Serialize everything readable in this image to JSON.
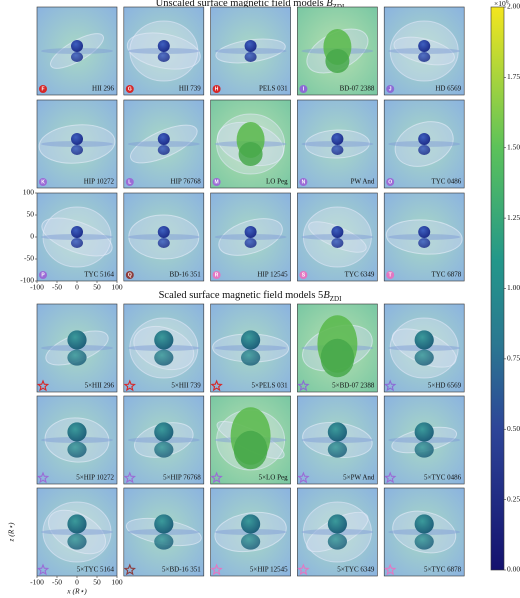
{
  "chart_data": {
    "type": "panel-grid",
    "sections": [
      {
        "title": "Unscaled surface magnetic field models ",
        "symbol": "B",
        "symbol_sub": "ZDI",
        "marker_shape": "circle",
        "panels": [
          {
            "label": "HII 296",
            "marker": "F",
            "color": "#d62728"
          },
          {
            "label": "HII 739",
            "marker": "G",
            "color": "#d62728"
          },
          {
            "label": "PELS 031",
            "marker": "H",
            "color": "#d62728"
          },
          {
            "label": "BD-07 2388",
            "marker": "I",
            "color": "#8c6bd6"
          },
          {
            "label": "HD 6569",
            "marker": "J",
            "color": "#8c6bd6"
          },
          {
            "label": "HIP 10272",
            "marker": "K",
            "color": "#9b6bd6"
          },
          {
            "label": "HIP 76768",
            "marker": "L",
            "color": "#9b6bd6"
          },
          {
            "label": "LO Peg",
            "marker": "M",
            "color": "#9b6bd6"
          },
          {
            "label": "PW And",
            "marker": "N",
            "color": "#9b6bd6"
          },
          {
            "label": "TYC 0486",
            "marker": "O",
            "color": "#9b6bd6"
          },
          {
            "label": "TYC 5164",
            "marker": "P",
            "color": "#9b6bd6"
          },
          {
            "label": "BD-16 351",
            "marker": "Q",
            "color": "#8c3b3b"
          },
          {
            "label": "HIP 12545",
            "marker": "R",
            "color": "#e377c2"
          },
          {
            "label": "TYC 6349",
            "marker": "S",
            "color": "#e377c2"
          },
          {
            "label": "TYC 6878",
            "marker": "T",
            "color": "#e377c2"
          }
        ]
      },
      {
        "title": "Scaled surface magnetic field models 5",
        "symbol": "B",
        "symbol_sub": "ZDI",
        "marker_shape": "star",
        "panels": [
          {
            "label": "5×HII 296",
            "color": "#d62728"
          },
          {
            "label": "5×HII 739",
            "color": "#d62728"
          },
          {
            "label": "5×PELS 031",
            "color": "#d62728"
          },
          {
            "label": "5×BD-07 2388",
            "color": "#8c6bd6"
          },
          {
            "label": "5×HD 6569",
            "color": "#8c6bd6"
          },
          {
            "label": "5×HIP 10272",
            "color": "#9b6bd6"
          },
          {
            "label": "5×HIP 76768",
            "color": "#9b6bd6"
          },
          {
            "label": "5×LO Peg",
            "color": "#9b6bd6"
          },
          {
            "label": "5×PW And",
            "color": "#9b6bd6"
          },
          {
            "label": "5×TYC 0486",
            "color": "#9b6bd6"
          },
          {
            "label": "5×TYC 5164",
            "color": "#9b6bd6"
          },
          {
            "label": "5×BD-16 351",
            "color": "#8c3b3b"
          },
          {
            "label": "5×HIP 12545",
            "color": "#e377c2"
          },
          {
            "label": "5×TYC 6349",
            "color": "#e377c2"
          },
          {
            "label": "5×TYC 6878",
            "color": "#e377c2"
          }
        ]
      }
    ],
    "xlim": [
      -100,
      100
    ],
    "ylim": [
      -100,
      100
    ],
    "xticks": [
      -100,
      -50,
      0,
      50,
      100
    ],
    "yticks": [
      -100,
      -50,
      0,
      50,
      100
    ],
    "xlabel": "x (R⋆)",
    "ylabel": "z (R⋆)",
    "colorbar": {
      "lim": [
        0,
        2
      ],
      "ticks": [
        {
          "value": 0,
          "label": "0.00"
        },
        {
          "value": 0.25,
          "label": "0.25"
        },
        {
          "value": 0.5,
          "label": "0.50"
        },
        {
          "value": 0.75,
          "label": "0.75"
        },
        {
          "value": 1,
          "label": "1.00"
        },
        {
          "value": 1.25,
          "label": "1.25"
        },
        {
          "value": 1.5,
          "label": "1.50"
        },
        {
          "value": 1.75,
          "label": "1.75"
        },
        {
          "value": 2,
          "label": "2.00"
        }
      ],
      "multiplier": "×10",
      "exponent": "6"
    }
  }
}
